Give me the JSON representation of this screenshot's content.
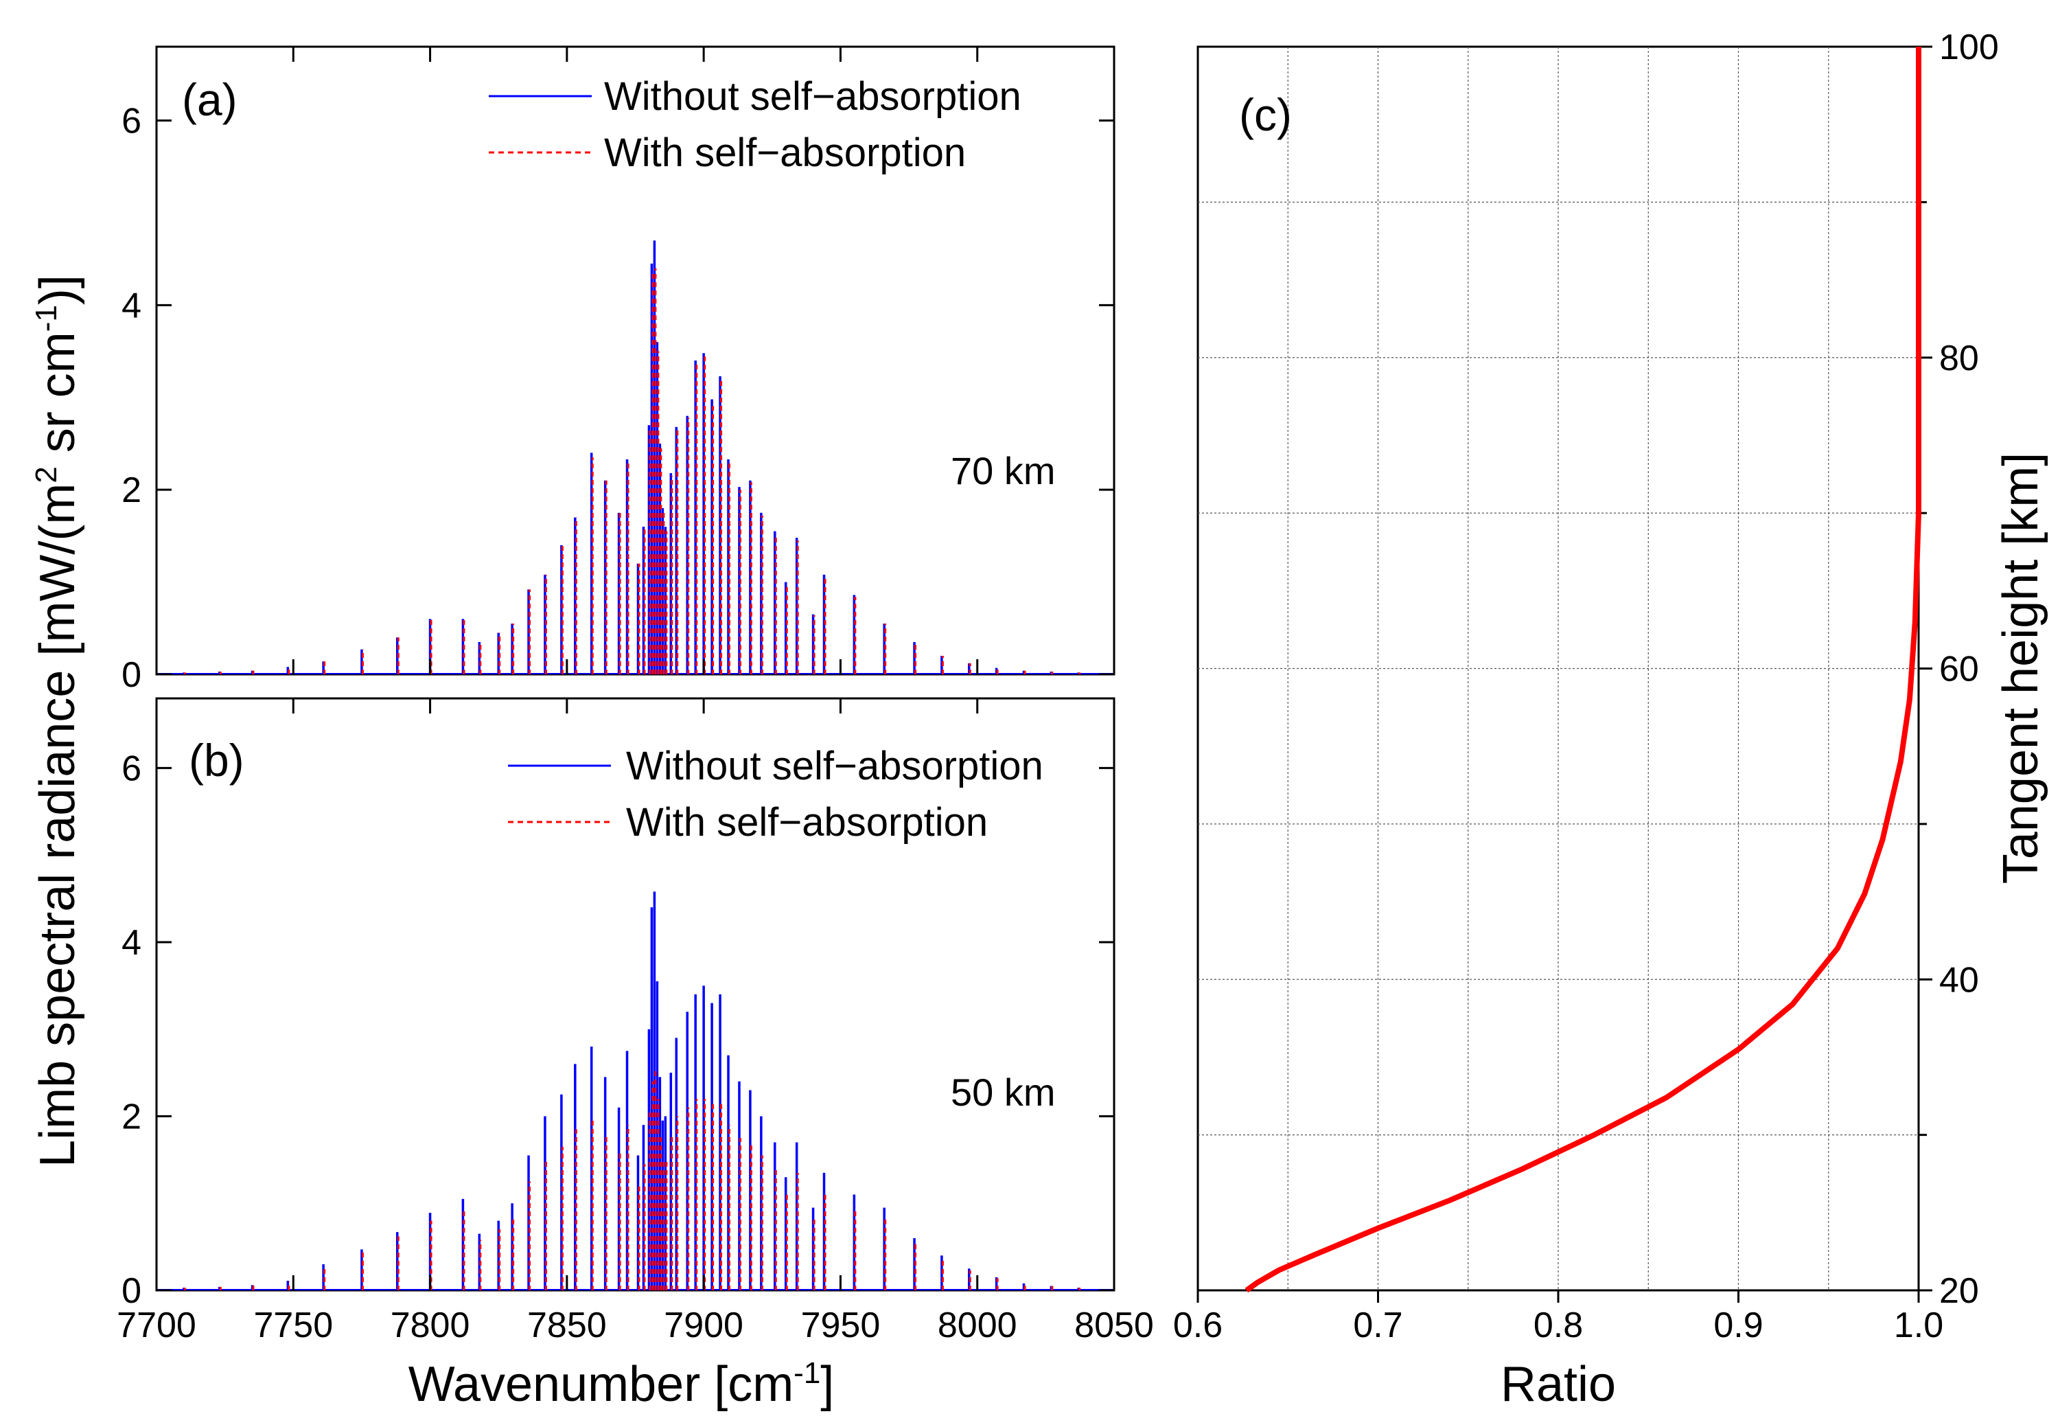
{
  "colors": {
    "without": "#0000ff",
    "with": "#ff0000",
    "axis": "#000000",
    "grid": "#555555"
  },
  "chart_data": [
    {
      "panel": "a",
      "type": "line",
      "label": "(a)",
      "annotation": "70 km",
      "xlim": [
        7700,
        8050
      ],
      "ylim": [
        0,
        6.8
      ],
      "yticks": [
        "0",
        "2",
        "4",
        "6"
      ],
      "legend": [
        "Without self−absorption",
        "With self−absorption"
      ],
      "series": [
        {
          "name": "Without self−absorption",
          "lines": [
            [
              7710,
              0.02
            ],
            [
              7723,
              0.03
            ],
            [
              7735,
              0.04
            ],
            [
              7748,
              0.08
            ],
            [
              7761,
              0.14
            ],
            [
              7775,
              0.27
            ],
            [
              7788,
              0.4
            ],
            [
              7800,
              0.6
            ],
            [
              7812,
              0.6
            ],
            [
              7818,
              0.35
            ],
            [
              7825,
              0.45
            ],
            [
              7830,
              0.55
            ],
            [
              7836,
              0.92
            ],
            [
              7842,
              1.08
            ],
            [
              7848,
              1.4
            ],
            [
              7853,
              1.7
            ],
            [
              7859,
              2.4
            ],
            [
              7864,
              2.1
            ],
            [
              7869,
              1.75
            ],
            [
              7872,
              2.33
            ],
            [
              7876,
              1.2
            ],
            [
              7878,
              1.6
            ],
            [
              7880,
              2.7
            ],
            [
              7881,
              4.45
            ],
            [
              7882,
              4.7
            ],
            [
              7883,
              3.6
            ],
            [
              7884,
              2.5
            ],
            [
              7885,
              1.8
            ],
            [
              7886,
              1.6
            ],
            [
              7888,
              2.18
            ],
            [
              7890,
              2.68
            ],
            [
              7894,
              2.8
            ],
            [
              7897,
              3.4
            ],
            [
              7900,
              3.48
            ],
            [
              7903,
              2.98
            ],
            [
              7906,
              3.23
            ],
            [
              7909,
              2.33
            ],
            [
              7913,
              2.03
            ],
            [
              7917,
              2.1
            ],
            [
              7921,
              1.75
            ],
            [
              7926,
              1.55
            ],
            [
              7930,
              1.0
            ],
            [
              7934,
              1.48
            ],
            [
              7940,
              0.65
            ],
            [
              7944,
              1.08
            ],
            [
              7955,
              0.86
            ],
            [
              7966,
              0.55
            ],
            [
              7977,
              0.35
            ],
            [
              7987,
              0.2
            ],
            [
              7997,
              0.12
            ],
            [
              8007,
              0.07
            ],
            [
              8017,
              0.04
            ],
            [
              8027,
              0.03
            ],
            [
              8037,
              0.02
            ]
          ]
        },
        {
          "name": "With self−absorption",
          "lines": [
            [
              7710,
              0.02
            ],
            [
              7723,
              0.03
            ],
            [
              7735,
              0.04
            ],
            [
              7748,
              0.08
            ],
            [
              7761,
              0.14
            ],
            [
              7775,
              0.27
            ],
            [
              7788,
              0.4
            ],
            [
              7800,
              0.6
            ],
            [
              7812,
              0.6
            ],
            [
              7818,
              0.35
            ],
            [
              7825,
              0.45
            ],
            [
              7830,
              0.55
            ],
            [
              7836,
              0.92
            ],
            [
              7842,
              1.08
            ],
            [
              7848,
              1.4
            ],
            [
              7853,
              1.7
            ],
            [
              7859,
              2.35
            ],
            [
              7864,
              2.1
            ],
            [
              7869,
              1.75
            ],
            [
              7872,
              2.3
            ],
            [
              7876,
              1.2
            ],
            [
              7878,
              1.6
            ],
            [
              7880,
              2.65
            ],
            [
              7881,
              4.35
            ],
            [
              7882,
              4.4
            ],
            [
              7883,
              3.5
            ],
            [
              7884,
              2.45
            ],
            [
              7885,
              1.78
            ],
            [
              7886,
              1.55
            ],
            [
              7888,
              2.15
            ],
            [
              7890,
              2.65
            ],
            [
              7894,
              2.78
            ],
            [
              7897,
              3.38
            ],
            [
              7900,
              3.45
            ],
            [
              7903,
              2.95
            ],
            [
              7906,
              3.2
            ],
            [
              7909,
              2.3
            ],
            [
              7913,
              2.0
            ],
            [
              7917,
              2.08
            ],
            [
              7921,
              1.72
            ],
            [
              7926,
              1.52
            ],
            [
              7930,
              0.98
            ],
            [
              7934,
              1.45
            ],
            [
              7940,
              0.64
            ],
            [
              7944,
              1.05
            ],
            [
              7955,
              0.84
            ],
            [
              7966,
              0.55
            ],
            [
              7977,
              0.35
            ],
            [
              7987,
              0.2
            ],
            [
              7997,
              0.12
            ],
            [
              8007,
              0.07
            ],
            [
              8017,
              0.04
            ],
            [
              8027,
              0.03
            ],
            [
              8037,
              0.02
            ]
          ]
        }
      ]
    },
    {
      "panel": "b",
      "type": "line",
      "label": "(b)",
      "annotation": "50 km",
      "xlim": [
        7700,
        8050
      ],
      "ylim": [
        0,
        6.8
      ],
      "yticks": [
        "0",
        "2",
        "4",
        "6"
      ],
      "xticks": [
        "7700",
        "7750",
        "7800",
        "7850",
        "7900",
        "7950",
        "8000",
        "8050"
      ],
      "legend": [
        "Without self−absorption",
        "With self−absorption"
      ],
      "series": [
        {
          "name": "Without self−absorption",
          "lines": [
            [
              7710,
              0.03
            ],
            [
              7723,
              0.04
            ],
            [
              7735,
              0.06
            ],
            [
              7748,
              0.11
            ],
            [
              7761,
              0.3
            ],
            [
              7775,
              0.47
            ],
            [
              7788,
              0.67
            ],
            [
              7800,
              0.89
            ],
            [
              7812,
              1.05
            ],
            [
              7818,
              0.65
            ],
            [
              7825,
              0.8
            ],
            [
              7830,
              1.0
            ],
            [
              7836,
              1.55
            ],
            [
              7842,
              2.0
            ],
            [
              7848,
              2.25
            ],
            [
              7853,
              2.6
            ],
            [
              7859,
              2.8
            ],
            [
              7864,
              2.45
            ],
            [
              7869,
              2.1
            ],
            [
              7872,
              2.75
            ],
            [
              7876,
              1.55
            ],
            [
              7878,
              1.9
            ],
            [
              7880,
              3.0
            ],
            [
              7881,
              4.4
            ],
            [
              7882,
              4.58
            ],
            [
              7883,
              3.55
            ],
            [
              7884,
              2.45
            ],
            [
              7885,
              1.95
            ],
            [
              7886,
              2.0
            ],
            [
              7888,
              2.5
            ],
            [
              7890,
              2.9
            ],
            [
              7894,
              3.2
            ],
            [
              7897,
              3.4
            ],
            [
              7900,
              3.5
            ],
            [
              7903,
              3.3
            ],
            [
              7906,
              3.4
            ],
            [
              7909,
              2.7
            ],
            [
              7913,
              2.4
            ],
            [
              7917,
              2.3
            ],
            [
              7921,
              2.0
            ],
            [
              7926,
              1.7
            ],
            [
              7930,
              1.3
            ],
            [
              7934,
              1.7
            ],
            [
              7940,
              0.95
            ],
            [
              7944,
              1.35
            ],
            [
              7955,
              1.1
            ],
            [
              7966,
              0.95
            ],
            [
              7977,
              0.6
            ],
            [
              7987,
              0.4
            ],
            [
              7997,
              0.25
            ],
            [
              8007,
              0.15
            ],
            [
              8017,
              0.08
            ],
            [
              8027,
              0.05
            ],
            [
              8037,
              0.03
            ]
          ]
        },
        {
          "name": "With self−absorption",
          "lines": [
            [
              7710,
              0.03
            ],
            [
              7723,
              0.04
            ],
            [
              7735,
              0.06
            ],
            [
              7748,
              0.1
            ],
            [
              7761,
              0.28
            ],
            [
              7775,
              0.44
            ],
            [
              7788,
              0.62
            ],
            [
              7800,
              0.8
            ],
            [
              7812,
              0.92
            ],
            [
              7818,
              0.58
            ],
            [
              7825,
              0.7
            ],
            [
              7830,
              0.85
            ],
            [
              7836,
              1.25
            ],
            [
              7842,
              1.5
            ],
            [
              7848,
              1.65
            ],
            [
              7853,
              1.85
            ],
            [
              7859,
              1.95
            ],
            [
              7864,
              1.8
            ],
            [
              7869,
              1.6
            ],
            [
              7872,
              1.9
            ],
            [
              7876,
              1.2
            ],
            [
              7878,
              1.45
            ],
            [
              7880,
              2.05
            ],
            [
              7881,
              2.4
            ],
            [
              7882,
              2.55
            ],
            [
              7883,
              2.2
            ],
            [
              7884,
              1.8
            ],
            [
              7885,
              1.5
            ],
            [
              7886,
              1.5
            ],
            [
              7888,
              1.8
            ],
            [
              7890,
              2.0
            ],
            [
              7894,
              2.1
            ],
            [
              7897,
              2.2
            ],
            [
              7900,
              2.2
            ],
            [
              7903,
              2.15
            ],
            [
              7906,
              2.18
            ],
            [
              7909,
              1.9
            ],
            [
              7913,
              1.75
            ],
            [
              7917,
              1.7
            ],
            [
              7921,
              1.55
            ],
            [
              7926,
              1.4
            ],
            [
              7930,
              1.1
            ],
            [
              7934,
              1.35
            ],
            [
              7940,
              0.82
            ],
            [
              7944,
              1.12
            ],
            [
              7955,
              0.95
            ],
            [
              7966,
              0.82
            ],
            [
              7977,
              0.55
            ],
            [
              7987,
              0.37
            ],
            [
              7997,
              0.23
            ],
            [
              8007,
              0.14
            ],
            [
              8017,
              0.08
            ],
            [
              8027,
              0.05
            ],
            [
              8037,
              0.03
            ]
          ]
        }
      ]
    },
    {
      "panel": "c",
      "type": "line",
      "label": "(c)",
      "xlim": [
        0.6,
        1.0
      ],
      "ylim": [
        20,
        100
      ],
      "xticks": [
        "0.6",
        "0.7",
        "0.8",
        "0.9",
        "1.0"
      ],
      "yticks": [
        "20",
        "40",
        "60",
        "80",
        "100"
      ],
      "xlabel": "Ratio",
      "ylabel": "Tangent height [km]",
      "series": [
        {
          "name": "Ratio",
          "x": [
            0.627,
            0.633,
            0.645,
            0.665,
            0.7,
            0.74,
            0.78,
            0.82,
            0.86,
            0.9,
            0.93,
            0.955,
            0.97,
            0.98,
            0.99,
            0.995,
            0.998,
            1.0,
            1.0
          ],
          "y": [
            20,
            20.5,
            21.3,
            22.3,
            24.0,
            25.8,
            27.8,
            30.0,
            32.4,
            35.5,
            38.4,
            42.0,
            45.5,
            49.0,
            54.0,
            58.0,
            63.0,
            70.0,
            100.0
          ]
        }
      ]
    }
  ],
  "labels": {
    "ylabel_ab_main": "Limb spectral radiance [mW/(m",
    "ylabel_ab_sup1": "2",
    "ylabel_ab_mid": " sr cm",
    "ylabel_ab_sup2": "-1",
    "ylabel_ab_end": ")]",
    "xlabel_ab_main": "Wavenumber [cm",
    "xlabel_ab_sup": "-1",
    "xlabel_ab_end": "]"
  }
}
